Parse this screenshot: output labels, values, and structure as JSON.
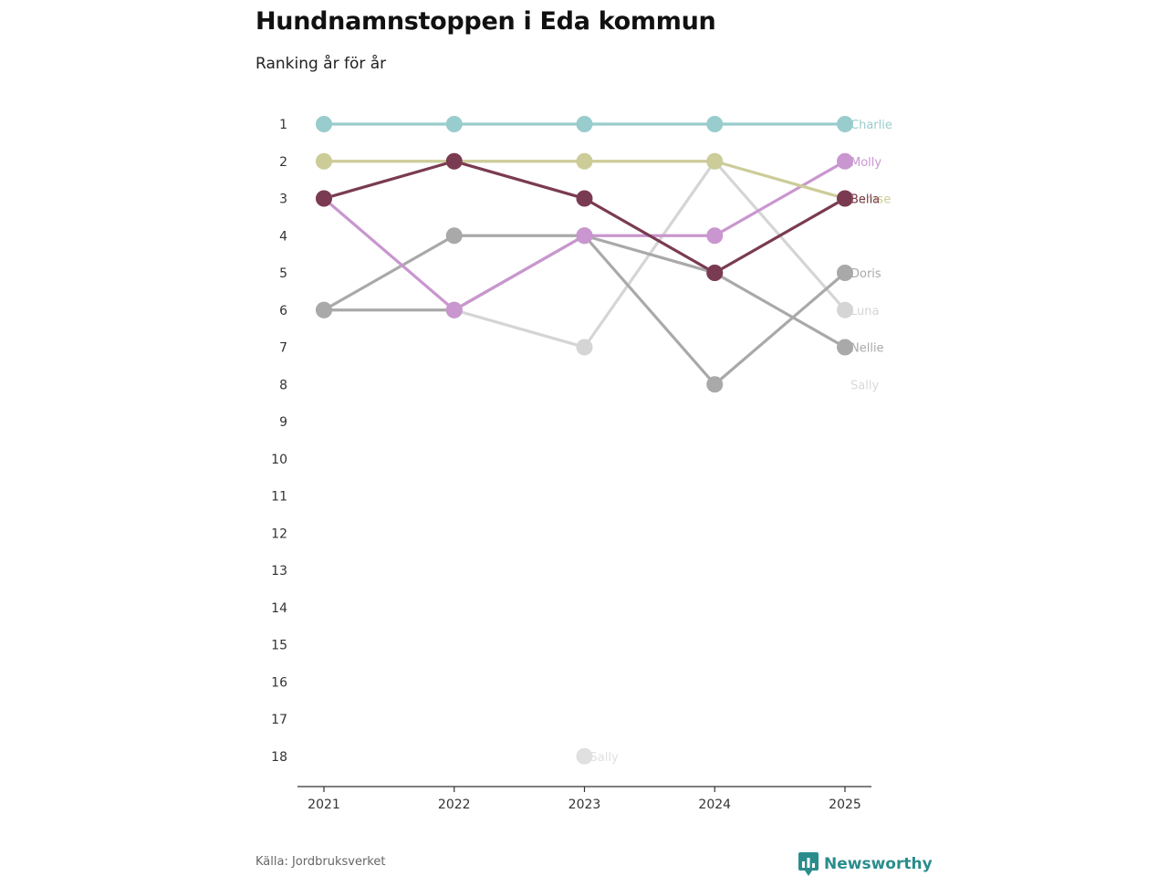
{
  "header": {
    "title": "Hundnamnstoppen i Eda kommun",
    "subtitle": "Ranking år för år"
  },
  "footer": {
    "source": "Källa: Jordbruksverket",
    "brand": "Newsworthy",
    "brand_icon": "bar-chart-icon",
    "brand_color": "#2a8d8c"
  },
  "chart_data": {
    "type": "line",
    "title": "Hundnamnstoppen i Eda kommun",
    "subtitle": "Ranking år för år",
    "xlabel": "",
    "ylabel": "",
    "y_reversed": true,
    "ylim": [
      1,
      18
    ],
    "y_ticks": [
      1,
      2,
      3,
      4,
      5,
      6,
      7,
      8,
      9,
      10,
      11,
      12,
      13,
      14,
      15,
      16,
      17,
      18
    ],
    "categories": [
      "2021",
      "2022",
      "2023",
      "2024",
      "2025"
    ],
    "series": [
      {
        "name": "Sally",
        "color": "#e0e0e0",
        "values": [
          null,
          null,
          18,
          null,
          null
        ],
        "end_label": "Sally",
        "label_year": "2023"
      },
      {
        "name": "Luna",
        "color": "#d5d5d5",
        "values": [
          null,
          6,
          7,
          2,
          6
        ],
        "end_label": "Luna"
      },
      {
        "name": "Doris",
        "color": "#a9a9a9",
        "values": [
          6,
          6,
          4,
          8,
          5
        ],
        "end_label": "Doris"
      },
      {
        "name": "Nellie",
        "color": "#a9a9a9",
        "values": [
          6,
          4,
          4,
          5,
          7
        ],
        "end_label": "Nellie"
      },
      {
        "name": "Molly",
        "color": "#c996cf",
        "values": [
          3,
          6,
          4,
          4,
          2
        ],
        "end_label": "Molly"
      },
      {
        "name": "Bamse",
        "color": "#cccc99",
        "values": [
          2,
          2,
          2,
          2,
          3
        ],
        "end_label": "Bamse"
      },
      {
        "name": "Bella",
        "color": "#7a3b52",
        "values": [
          3,
          2,
          3,
          5,
          3
        ],
        "end_label": "Bella"
      },
      {
        "name": "Charlie",
        "color": "#99cccc",
        "values": [
          1,
          1,
          1,
          1,
          1
        ],
        "end_label": "Charlie"
      }
    ],
    "end_labels_extra": [
      {
        "name": "Sally",
        "color": "#d9d9d9",
        "rank": 8,
        "end_label": "Sally"
      }
    ]
  }
}
